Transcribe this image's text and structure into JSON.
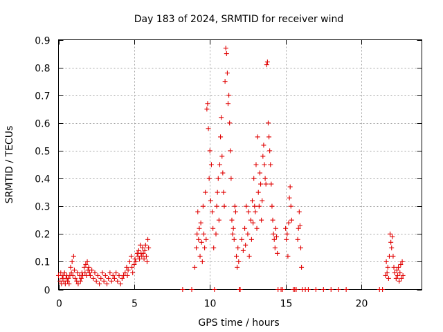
{
  "chart_data": {
    "type": "scatter",
    "title": "Day 183 of 2024, SRMTID for receiver wind",
    "xlabel": "GPS time / hours",
    "ylabel": "SRMTID / TECUs",
    "xlim": [
      0,
      24
    ],
    "ylim": [
      0,
      0.9
    ],
    "xticks": [
      0,
      5,
      10,
      15,
      20
    ],
    "xtick_labels": [
      "0",
      "5",
      "10",
      "15",
      "20"
    ],
    "yticks": [
      0,
      0.1,
      0.2,
      0.3,
      0.4,
      0.5,
      0.6,
      0.7,
      0.8,
      0.9
    ],
    "ytick_labels": [
      "0",
      "0.1",
      "0.2",
      "0.3",
      "0.4",
      "0.5",
      "0.6",
      "0.7",
      "0.8",
      "0.9"
    ],
    "grid": true,
    "marker": "plus",
    "color": "#e00000",
    "series": [
      {
        "name": "SRMTID",
        "points": [
          [
            0.0,
            0.05
          ],
          [
            0.1,
            0.03
          ],
          [
            0.15,
            0.06
          ],
          [
            0.2,
            0.02
          ],
          [
            0.25,
            0.04
          ],
          [
            0.3,
            0.05
          ],
          [
            0.35,
            0.03
          ],
          [
            0.4,
            0.06
          ],
          [
            0.45,
            0.02
          ],
          [
            0.5,
            0.04
          ],
          [
            0.55,
            0.05
          ],
          [
            0.6,
            0.03
          ],
          [
            0.65,
            0.04
          ],
          [
            0.7,
            0.02
          ],
          [
            0.75,
            0.05
          ],
          [
            0.8,
            0.08
          ],
          [
            0.85,
            0.06
          ],
          [
            0.9,
            0.1
          ],
          [
            0.95,
            0.05
          ],
          [
            1.0,
            0.12
          ],
          [
            1.05,
            0.07
          ],
          [
            1.1,
            0.04
          ],
          [
            1.2,
            0.03
          ],
          [
            1.25,
            0.06
          ],
          [
            1.3,
            0.02
          ],
          [
            1.4,
            0.05
          ],
          [
            1.45,
            0.03
          ],
          [
            1.5,
            0.04
          ],
          [
            1.55,
            0.06
          ],
          [
            1.6,
            0.05
          ],
          [
            1.7,
            0.08
          ],
          [
            1.75,
            0.06
          ],
          [
            1.8,
            0.09
          ],
          [
            1.85,
            0.05
          ],
          [
            1.9,
            0.1
          ],
          [
            1.95,
            0.07
          ],
          [
            2.0,
            0.08
          ],
          [
            2.05,
            0.06
          ],
          [
            2.1,
            0.05
          ],
          [
            2.2,
            0.07
          ],
          [
            2.3,
            0.04
          ],
          [
            2.4,
            0.06
          ],
          [
            2.5,
            0.03
          ],
          [
            2.6,
            0.05
          ],
          [
            2.7,
            0.02
          ],
          [
            2.8,
            0.04
          ],
          [
            2.9,
            0.06
          ],
          [
            3.0,
            0.03
          ],
          [
            3.1,
            0.05
          ],
          [
            3.2,
            0.02
          ],
          [
            3.3,
            0.04
          ],
          [
            3.4,
            0.06
          ],
          [
            3.5,
            0.03
          ],
          [
            3.6,
            0.05
          ],
          [
            3.7,
            0.04
          ],
          [
            3.8,
            0.06
          ],
          [
            3.9,
            0.03
          ],
          [
            4.0,
            0.05
          ],
          [
            4.1,
            0.02
          ],
          [
            4.2,
            0.04
          ],
          [
            4.3,
            0.05
          ],
          [
            4.4,
            0.06
          ],
          [
            4.5,
            0.08
          ],
          [
            4.55,
            0.05
          ],
          [
            4.6,
            0.07
          ],
          [
            4.7,
            0.1
          ],
          [
            4.8,
            0.12
          ],
          [
            4.85,
            0.08
          ],
          [
            4.9,
            0.06
          ],
          [
            5.0,
            0.09
          ],
          [
            5.05,
            0.11
          ],
          [
            5.1,
            0.1
          ],
          [
            5.2,
            0.13
          ],
          [
            5.25,
            0.12
          ],
          [
            5.3,
            0.14
          ],
          [
            5.35,
            0.11
          ],
          [
            5.4,
            0.16
          ],
          [
            5.45,
            0.13
          ],
          [
            5.5,
            0.12
          ],
          [
            5.55,
            0.15
          ],
          [
            5.6,
            0.13
          ],
          [
            5.65,
            0.11
          ],
          [
            5.7,
            0.14
          ],
          [
            5.75,
            0.16
          ],
          [
            5.8,
            0.12
          ],
          [
            5.85,
            0.1
          ],
          [
            5.9,
            0.18
          ],
          [
            5.95,
            0.15
          ],
          [
            8.2,
            0.0
          ],
          [
            8.8,
            0.0
          ],
          [
            9.0,
            0.08
          ],
          [
            9.1,
            0.15
          ],
          [
            9.15,
            0.2
          ],
          [
            9.2,
            0.28
          ],
          [
            9.25,
            0.18
          ],
          [
            9.3,
            0.22
          ],
          [
            9.35,
            0.12
          ],
          [
            9.4,
            0.24
          ],
          [
            9.45,
            0.17
          ],
          [
            9.5,
            0.1
          ],
          [
            9.55,
            0.3
          ],
          [
            9.6,
            0.2
          ],
          [
            9.65,
            0.15
          ],
          [
            9.7,
            0.35
          ],
          [
            9.75,
            0.18
          ],
          [
            9.8,
            0.65
          ],
          [
            9.85,
            0.67
          ],
          [
            9.9,
            0.58
          ],
          [
            9.95,
            0.4
          ],
          [
            10.0,
            0.5
          ],
          [
            10.05,
            0.32
          ],
          [
            10.1,
            0.45
          ],
          [
            10.15,
            0.28
          ],
          [
            10.2,
            0.22
          ],
          [
            10.25,
            0.15
          ],
          [
            10.3,
            0.0
          ],
          [
            10.4,
            0.2
          ],
          [
            10.45,
            0.3
          ],
          [
            10.5,
            0.35
          ],
          [
            10.55,
            0.4
          ],
          [
            10.6,
            0.25
          ],
          [
            10.65,
            0.45
          ],
          [
            10.7,
            0.55
          ],
          [
            10.75,
            0.62
          ],
          [
            10.8,
            0.48
          ],
          [
            10.85,
            0.42
          ],
          [
            10.9,
            0.35
          ],
          [
            10.95,
            0.3
          ],
          [
            11.0,
            0.75
          ],
          [
            11.05,
            0.87
          ],
          [
            11.1,
            0.85
          ],
          [
            11.15,
            0.78
          ],
          [
            11.2,
            0.67
          ],
          [
            11.25,
            0.7
          ],
          [
            11.3,
            0.6
          ],
          [
            11.35,
            0.5
          ],
          [
            11.4,
            0.4
          ],
          [
            11.45,
            0.25
          ],
          [
            11.5,
            0.2
          ],
          [
            11.55,
            0.22
          ],
          [
            11.6,
            0.18
          ],
          [
            11.65,
            0.3
          ],
          [
            11.7,
            0.28
          ],
          [
            11.75,
            0.12
          ],
          [
            11.8,
            0.08
          ],
          [
            11.85,
            0.15
          ],
          [
            11.9,
            0.1
          ],
          [
            11.95,
            0.0
          ],
          [
            12.0,
            0.0
          ],
          [
            12.1,
            0.18
          ],
          [
            12.2,
            0.14
          ],
          [
            12.3,
            0.22
          ],
          [
            12.35,
            0.16
          ],
          [
            12.4,
            0.3
          ],
          [
            12.5,
            0.2
          ],
          [
            12.55,
            0.28
          ],
          [
            12.6,
            0.12
          ],
          [
            12.7,
            0.25
          ],
          [
            12.75,
            0.18
          ],
          [
            12.8,
            0.32
          ],
          [
            12.85,
            0.24
          ],
          [
            12.9,
            0.4
          ],
          [
            12.95,
            0.3
          ],
          [
            13.0,
            0.28
          ],
          [
            13.05,
            0.45
          ],
          [
            13.1,
            0.22
          ],
          [
            13.15,
            0.55
          ],
          [
            13.2,
            0.35
          ],
          [
            13.25,
            0.3
          ],
          [
            13.3,
            0.42
          ],
          [
            13.35,
            0.38
          ],
          [
            13.4,
            0.25
          ],
          [
            13.45,
            0.32
          ],
          [
            13.5,
            0.48
          ],
          [
            13.55,
            0.52
          ],
          [
            13.6,
            0.45
          ],
          [
            13.65,
            0.4
          ],
          [
            13.7,
            0.38
          ],
          [
            13.75,
            0.81
          ],
          [
            13.8,
            0.82
          ],
          [
            13.85,
            0.6
          ],
          [
            13.9,
            0.55
          ],
          [
            13.95,
            0.5
          ],
          [
            14.0,
            0.45
          ],
          [
            14.05,
            0.38
          ],
          [
            14.1,
            0.3
          ],
          [
            14.15,
            0.25
          ],
          [
            14.2,
            0.2
          ],
          [
            14.25,
            0.18
          ],
          [
            14.3,
            0.15
          ],
          [
            14.35,
            0.22
          ],
          [
            14.4,
            0.19
          ],
          [
            14.45,
            0.13
          ],
          [
            14.5,
            0.0
          ],
          [
            14.7,
            0.0
          ],
          [
            14.8,
            0.0
          ],
          [
            15.0,
            0.22
          ],
          [
            15.05,
            0.18
          ],
          [
            15.1,
            0.2
          ],
          [
            15.15,
            0.12
          ],
          [
            15.2,
            0.24
          ],
          [
            15.25,
            0.33
          ],
          [
            15.3,
            0.37
          ],
          [
            15.35,
            0.3
          ],
          [
            15.4,
            0.25
          ],
          [
            15.5,
            0.0
          ],
          [
            15.6,
            0.0
          ],
          [
            15.7,
            0.0
          ],
          [
            15.8,
            0.18
          ],
          [
            15.85,
            0.22
          ],
          [
            15.9,
            0.28
          ],
          [
            15.95,
            0.23
          ],
          [
            16.0,
            0.15
          ],
          [
            16.05,
            0.08
          ],
          [
            16.1,
            0.0
          ],
          [
            16.3,
            0.0
          ],
          [
            16.5,
            0.0
          ],
          [
            17.0,
            0.0
          ],
          [
            17.5,
            0.0
          ],
          [
            18.0,
            0.0
          ],
          [
            18.5,
            0.0
          ],
          [
            19.0,
            0.0
          ],
          [
            21.2,
            0.0
          ],
          [
            21.4,
            0.0
          ],
          [
            21.6,
            0.05
          ],
          [
            21.65,
            0.1
          ],
          [
            21.7,
            0.06
          ],
          [
            21.75,
            0.08
          ],
          [
            21.8,
            0.04
          ],
          [
            21.85,
            0.12
          ],
          [
            21.9,
            0.2
          ],
          [
            21.95,
            0.17
          ],
          [
            22.0,
            0.15
          ],
          [
            22.05,
            0.19
          ],
          [
            22.1,
            0.12
          ],
          [
            22.15,
            0.08
          ],
          [
            22.2,
            0.06
          ],
          [
            22.3,
            0.04
          ],
          [
            22.35,
            0.07
          ],
          [
            22.4,
            0.05
          ],
          [
            22.45,
            0.08
          ],
          [
            22.5,
            0.03
          ],
          [
            22.55,
            0.06
          ],
          [
            22.6,
            0.09
          ],
          [
            22.65,
            0.04
          ],
          [
            22.7,
            0.1
          ],
          [
            22.75,
            0.05
          ]
        ]
      }
    ]
  }
}
